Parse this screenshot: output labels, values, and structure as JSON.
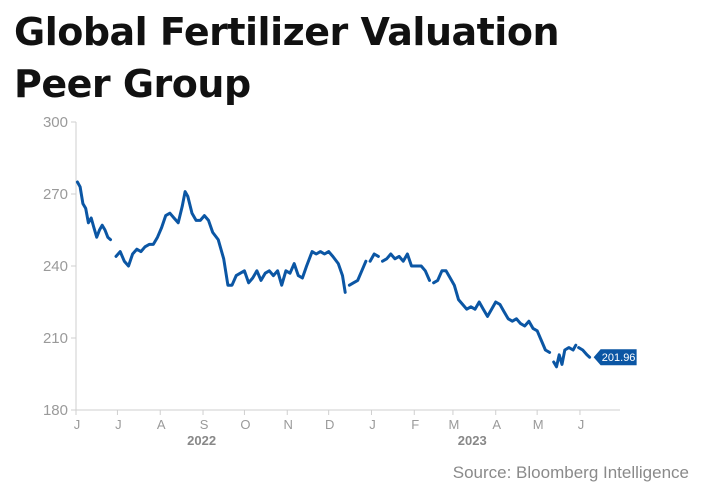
{
  "chart_data": {
    "type": "line",
    "title_lines": [
      "Global Fertilizer Valuation",
      "Peer Group"
    ],
    "source": "Source: Bloomberg Intelligence",
    "y_ticks": [
      "300",
      "270",
      "240",
      "210",
      "180"
    ],
    "y_tick_values": [
      300,
      270,
      240,
      210,
      180
    ],
    "ylim": [
      180,
      300
    ],
    "xlim": [
      "2022-06-01",
      "2023-06-30"
    ],
    "x_tick_labels": [
      "J",
      "J",
      "A",
      "S",
      "O",
      "N",
      "D",
      "J",
      "F",
      "M",
      "A",
      "M",
      "J"
    ],
    "x_tick_dates": [
      "2022-06-01",
      "2022-07-01",
      "2022-08-01",
      "2022-09-01",
      "2022-10-01",
      "2022-11-01",
      "2022-12-01",
      "2023-01-01",
      "2023-02-01",
      "2023-03-01",
      "2023-04-01",
      "2023-05-01",
      "2023-06-01"
    ],
    "year_labels": [
      {
        "label": "2022",
        "date": "2022-08-31"
      },
      {
        "label": "2023",
        "date": "2023-03-15"
      }
    ],
    "last_value_label": "201.96",
    "line_color": "#0b56a4",
    "series": [
      {
        "points": [
          [
            "2022-06-02",
            275
          ],
          [
            "2022-06-04",
            273
          ],
          [
            "2022-06-06",
            266
          ],
          [
            "2022-06-08",
            264
          ],
          [
            "2022-06-10",
            258
          ],
          [
            "2022-06-12",
            260
          ],
          [
            "2022-06-14",
            256
          ],
          [
            "2022-06-16",
            252
          ],
          [
            "2022-06-18",
            255
          ],
          [
            "2022-06-20",
            257
          ],
          [
            "2022-06-22",
            255
          ],
          [
            "2022-06-24",
            252
          ],
          [
            "2022-06-26",
            251
          ],
          null,
          [
            "2022-06-30",
            244
          ],
          [
            "2022-07-03",
            246
          ],
          [
            "2022-07-06",
            242
          ],
          [
            "2022-07-09",
            240
          ],
          [
            "2022-07-12",
            245
          ],
          [
            "2022-07-15",
            247
          ],
          [
            "2022-07-18",
            246
          ],
          [
            "2022-07-21",
            248
          ],
          [
            "2022-07-24",
            249
          ],
          [
            "2022-07-27",
            249
          ],
          [
            "2022-07-30",
            252
          ],
          [
            "2022-08-02",
            256
          ],
          [
            "2022-08-05",
            261
          ],
          [
            "2022-08-08",
            262
          ],
          [
            "2022-08-11",
            260
          ],
          [
            "2022-08-14",
            258
          ],
          [
            "2022-08-17",
            265
          ],
          [
            "2022-08-19",
            271
          ],
          [
            "2022-08-21",
            269
          ],
          [
            "2022-08-24",
            262
          ],
          [
            "2022-08-27",
            259
          ],
          [
            "2022-08-30",
            259
          ],
          [
            "2022-09-02",
            261
          ],
          [
            "2022-09-05",
            259
          ],
          [
            "2022-09-08",
            254
          ],
          [
            "2022-09-12",
            251
          ],
          [
            "2022-09-16",
            243
          ],
          [
            "2022-09-19",
            232
          ],
          [
            "2022-09-22",
            232
          ],
          [
            "2022-09-25",
            236
          ],
          [
            "2022-09-28",
            237
          ],
          [
            "2022-10-01",
            238
          ],
          [
            "2022-10-04",
            233
          ],
          [
            "2022-10-07",
            235
          ],
          [
            "2022-10-10",
            238
          ],
          [
            "2022-10-13",
            234
          ],
          [
            "2022-10-16",
            237
          ],
          [
            "2022-10-19",
            238
          ],
          [
            "2022-10-22",
            236
          ],
          [
            "2022-10-25",
            238
          ],
          [
            "2022-10-28",
            232
          ],
          [
            "2022-10-31",
            238
          ],
          [
            "2022-11-03",
            237
          ],
          [
            "2022-11-06",
            241
          ],
          [
            "2022-11-09",
            236
          ],
          [
            "2022-11-12",
            235
          ],
          [
            "2022-11-15",
            240
          ],
          [
            "2022-11-19",
            246
          ],
          [
            "2022-11-22",
            245
          ],
          [
            "2022-11-25",
            246
          ],
          [
            "2022-11-28",
            245
          ],
          [
            "2022-12-01",
            246
          ],
          [
            "2022-12-04",
            244
          ],
          [
            "2022-12-08",
            241
          ],
          [
            "2022-12-11",
            236
          ],
          [
            "2022-12-13",
            229
          ],
          null,
          [
            "2022-12-16",
            232
          ],
          [
            "2022-12-19",
            233
          ],
          [
            "2022-12-22",
            234
          ],
          [
            "2022-12-25",
            238
          ],
          [
            "2022-12-28",
            242
          ],
          null,
          [
            "2022-12-31",
            242
          ],
          [
            "2023-01-03",
            245
          ],
          [
            "2023-01-06",
            244
          ],
          null,
          [
            "2023-01-09",
            242
          ],
          [
            "2023-01-12",
            243
          ],
          [
            "2023-01-15",
            245
          ],
          [
            "2023-01-18",
            243
          ],
          [
            "2023-01-21",
            244
          ],
          [
            "2023-01-24",
            242
          ],
          [
            "2023-01-27",
            245
          ],
          [
            "2023-01-30",
            240
          ],
          [
            "2023-02-03",
            240
          ],
          [
            "2023-02-06",
            240
          ],
          [
            "2023-02-09",
            238
          ],
          [
            "2023-02-12",
            234
          ],
          null,
          [
            "2023-02-15",
            233
          ],
          [
            "2023-02-18",
            234
          ],
          [
            "2023-02-21",
            238
          ],
          [
            "2023-02-24",
            238
          ],
          [
            "2023-02-27",
            235
          ],
          [
            "2023-03-02",
            232
          ],
          [
            "2023-03-05",
            226
          ],
          [
            "2023-03-08",
            224
          ],
          [
            "2023-03-11",
            222
          ],
          [
            "2023-03-14",
            223
          ],
          [
            "2023-03-17",
            222
          ],
          [
            "2023-03-20",
            225
          ],
          [
            "2023-03-23",
            222
          ],
          [
            "2023-03-26",
            219
          ],
          [
            "2023-03-29",
            222
          ],
          [
            "2023-04-01",
            225
          ],
          [
            "2023-04-04",
            224
          ],
          [
            "2023-04-07",
            221
          ],
          [
            "2023-04-10",
            218
          ],
          [
            "2023-04-13",
            217
          ],
          [
            "2023-04-16",
            218
          ],
          [
            "2023-04-19",
            216
          ],
          [
            "2023-04-22",
            215
          ],
          [
            "2023-04-25",
            217
          ],
          [
            "2023-04-28",
            214
          ],
          [
            "2023-05-01",
            213
          ],
          [
            "2023-05-04",
            209
          ],
          [
            "2023-05-07",
            205
          ],
          [
            "2023-05-10",
            204
          ],
          null,
          [
            "2023-05-13",
            200
          ],
          [
            "2023-05-15",
            198
          ],
          [
            "2023-05-17",
            203
          ],
          [
            "2023-05-19",
            199
          ],
          [
            "2023-05-21",
            205
          ],
          [
            "2023-05-24",
            206
          ],
          [
            "2023-05-27",
            205
          ],
          [
            "2023-05-29",
            207
          ],
          null,
          [
            "2023-05-31",
            206
          ],
          [
            "2023-06-03",
            205
          ],
          [
            "2023-06-06",
            203
          ],
          [
            "2023-06-08",
            202
          ]
        ]
      }
    ]
  }
}
